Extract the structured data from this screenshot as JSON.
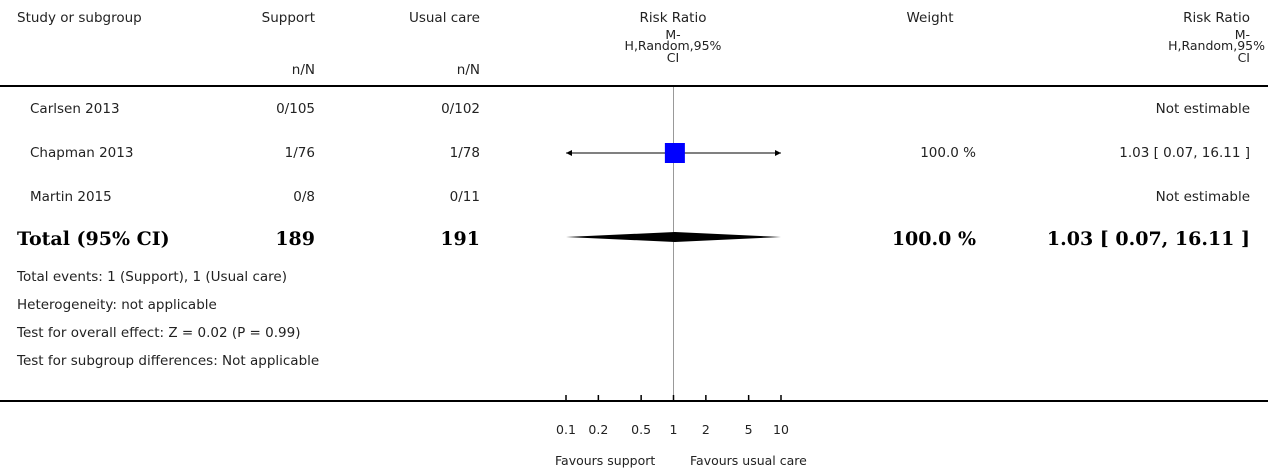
{
  "header": {
    "study_col": "Study or subgroup",
    "group1": "Support",
    "group2": "Usual care",
    "nN1": "n/N",
    "nN2": "n/N",
    "plot_col": [
      "Risk Ratio",
      "M-",
      "H,Random,95%",
      "CI"
    ],
    "weight_col": "Weight",
    "result_col": [
      "Risk Ratio",
      "M-",
      "H,Random,95%",
      "CI"
    ]
  },
  "studies": [
    {
      "name": "Carlsen 2013",
      "g1": "0/105",
      "g2": "0/102",
      "weight": "",
      "result": "Not estimable"
    },
    {
      "name": "Chapman 2013",
      "g1": "1/76",
      "g2": "1/78",
      "weight": "100.0 %",
      "result": "1.03 [ 0.07, 16.11 ]"
    },
    {
      "name": "Martin 2015",
      "g1": "0/8",
      "g2": "0/11",
      "weight": "",
      "result": "Not estimable"
    }
  ],
  "total": {
    "label": "Total (95% CI)",
    "g1": "189",
    "g2": "191",
    "weight": "100.0 %",
    "result": "1.03 [ 0.07, 16.11 ]"
  },
  "footnotes": [
    "Total events: 1 (Support), 1 (Usual care)",
    "Heterogeneity: not applicable",
    "Test for overall effect: Z = 0.02 (P = 0.99)",
    "Test for subgroup differences: Not applicable"
  ],
  "axis": {
    "ticks": [
      "0.1",
      "0.2",
      "0.5",
      "1",
      "2",
      "5",
      "10"
    ],
    "left_label": "Favours support",
    "right_label": "Favours usual care"
  },
  "colors": {
    "marker": "#0000ff",
    "line": "#000000",
    "ref": "#999999"
  },
  "chart_data": {
    "type": "forest",
    "scale": "log",
    "xlim": [
      0.1,
      10
    ],
    "reference": 1,
    "tick_values": [
      0.1,
      0.2,
      0.5,
      1,
      2,
      5,
      10
    ],
    "studies": [
      {
        "name": "Carlsen 2013",
        "estimate": null,
        "lower": null,
        "upper": null,
        "weight": null
      },
      {
        "name": "Chapman 2013",
        "estimate": 1.03,
        "lower": 0.07,
        "upper": 16.11,
        "weight": 100.0
      },
      {
        "name": "Martin 2015",
        "estimate": null,
        "lower": null,
        "upper": null,
        "weight": null
      }
    ],
    "total": {
      "estimate": 1.03,
      "lower": 0.07,
      "upper": 16.11
    }
  }
}
